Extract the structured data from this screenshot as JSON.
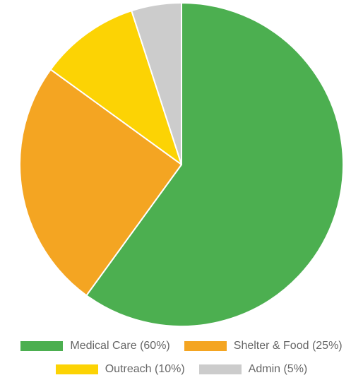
{
  "chart_data": {
    "type": "pie",
    "slices": [
      {
        "label": "Medical Care (60%)",
        "value": 60,
        "color": "#4caf50"
      },
      {
        "label": "Shelter & Food (25%)",
        "value": 25,
        "color": "#f4a522"
      },
      {
        "label": "Outreach (10%)",
        "value": 10,
        "color": "#fcd304"
      },
      {
        "label": "Admin (5%)",
        "value": 5,
        "color": "#cccccc"
      }
    ],
    "legend_position": "bottom"
  }
}
